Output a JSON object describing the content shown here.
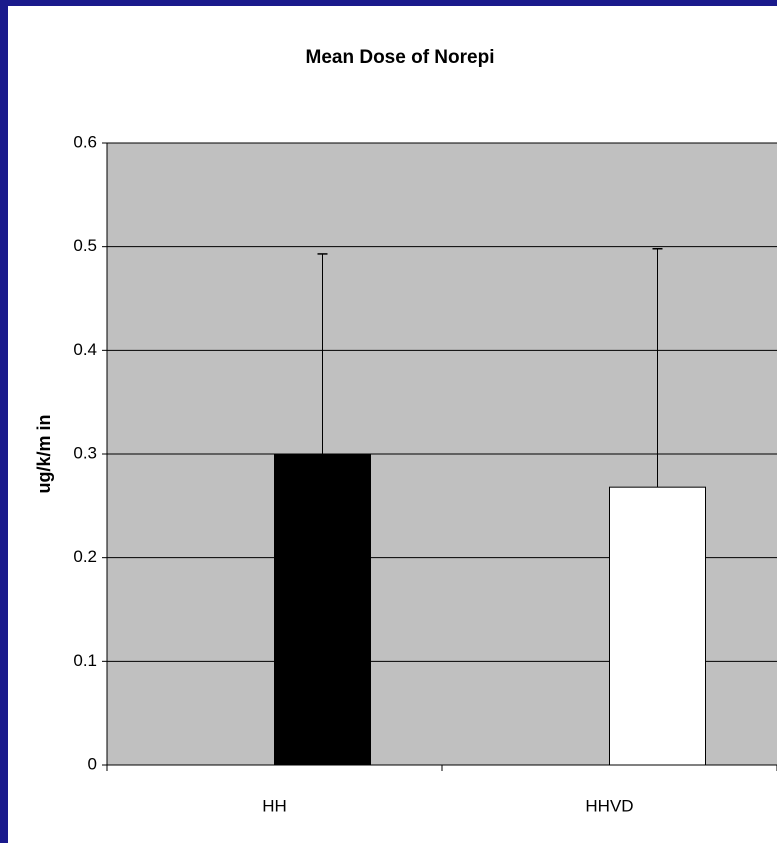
{
  "chart_data": {
    "type": "bar",
    "title": "Mean Dose of Norepi",
    "ylabel": "ug/k/m in",
    "categories": [
      "HH",
      "HHVD"
    ],
    "values": [
      0.3,
      0.268
    ],
    "errors": [
      0.193,
      0.23
    ],
    "colors": [
      "#000000",
      "#ffffff"
    ],
    "ylim": [
      0,
      0.6
    ],
    "yticks": [
      0,
      0.1,
      0.2,
      0.3,
      0.4,
      0.5,
      0.6
    ],
    "grid": true
  }
}
